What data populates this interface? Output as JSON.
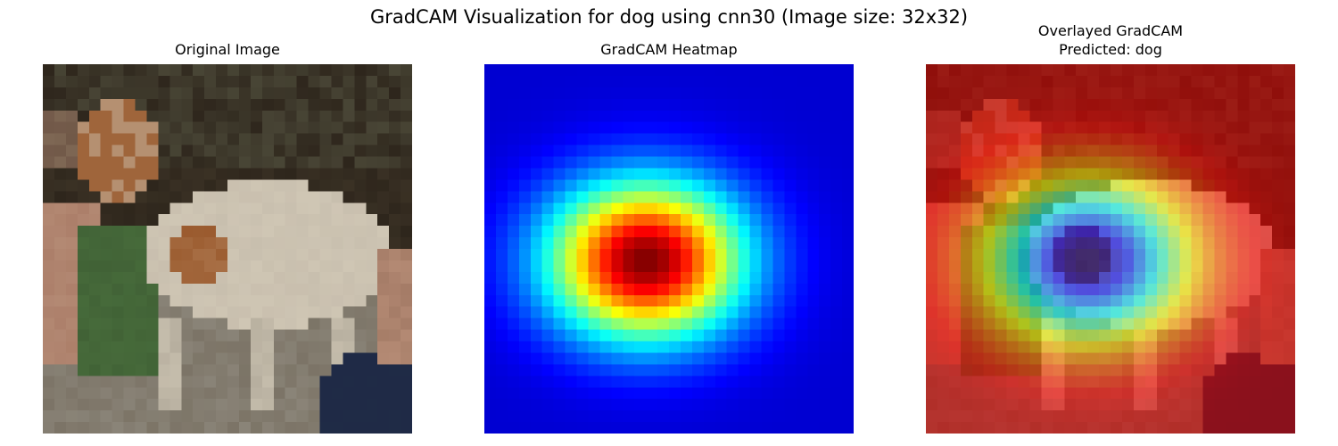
{
  "figure": {
    "title": "GradCAM Visualization for dog using cnn30 (Image size: 32x32)"
  },
  "panels": [
    {
      "title": "Original Image"
    },
    {
      "title": "GradCAM Heatmap"
    },
    {
      "title_line1": "Overlayed GradCAM",
      "title_line2": "Predicted: dog"
    }
  ],
  "image": {
    "grid_size": 32,
    "colormap": "jet"
  },
  "colors": {
    "background_dark": "#2e261c",
    "dog_white": "#cfc6b4",
    "dog_brown": "#9a5a2e",
    "grass_green": "#466a3a",
    "ground_gray": "#8a8478",
    "pants_navy": "#1f2b46",
    "left_skin": "#b48a74"
  }
}
